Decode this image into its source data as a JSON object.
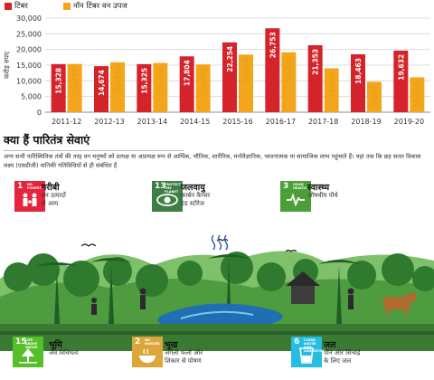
{
  "chart_data": {
    "type": "bar",
    "ylabel": "करोड़ रुपए",
    "ylim": [
      0,
      30000
    ],
    "yticks": [
      "0",
      "5,000",
      "10,000",
      "15,000",
      "20,000",
      "25,000",
      "30,000"
    ],
    "grid": true,
    "legend_position": "top-left",
    "categories": [
      "2011-12",
      "2012-13",
      "2013-14",
      "2014-15",
      "2015-16",
      "2016-17",
      "2017-18",
      "2018-19",
      "2019-20"
    ],
    "series": [
      {
        "name": "टिंबर",
        "color": "#d4232b",
        "values": [
          15328,
          14674,
          15325,
          17804,
          22254,
          26753,
          21353,
          18463,
          19632
        ],
        "labels": [
          "15,328",
          "14,674",
          "15,325",
          "17,804",
          "22,254",
          "26,753",
          "21,353",
          "18,463",
          "19,632"
        ]
      },
      {
        "name": "नॉन टिंबर वन उपज",
        "color": "#f3a51b",
        "values": [
          15378,
          15910,
          15696,
          15240,
          18373,
          19105,
          13988,
          9693,
          11118
        ],
        "labels": [
          "15,378",
          "15,910",
          "15,696",
          "15,240",
          "18,373",
          "19,105",
          "13,988",
          "9,693",
          "11,118"
        ]
      }
    ]
  },
  "section": {
    "heading": "क्या हैं पारितंत्र सेवाएं",
    "intro": "अन्य सभी पारिस्थितिक तंत्रों की तरह वन मनुष्यों को प्रत्यक्ष या अप्रत्यक्ष रूप से आर्थिक, भौतिक, शारीरिक, मनोवैज्ञानिक, भावनात्मक या सामाजिक लाभ पहुंचाते हैं। यहां तक कि छह सतत विकास लक्ष्य (एसडीजी) वानिकी गतिविधियों से ही संबंधित हैं"
  },
  "sdgs": [
    {
      "num": "1",
      "caption": "NO POVERTY",
      "title": "गरीबी",
      "desc": [
        "वन उत्पादों",
        "से आय"
      ],
      "color": "#e5243b",
      "icon": "family-icon"
    },
    {
      "num": "13",
      "caption": "PROTECT THE PLANET",
      "title": "जलवायु",
      "desc": [
        "कार्बन कैप्चर",
        "एंड स्टोरेज"
      ],
      "color": "#3f7e44",
      "icon": "eye-globe-icon"
    },
    {
      "num": "3",
      "caption": "GOOD HEALTH",
      "title": "स्वास्थ्य",
      "desc": [
        "औषधीय पौधे"
      ],
      "color": "#4c9f38",
      "icon": "heartbeat-icon"
    },
    {
      "num": "15",
      "caption": "LIFE ABOVE WATER",
      "title": "भूमि",
      "desc": [
        "जैव विविधता"
      ],
      "color": "#56c02b",
      "icon": "tree-icon"
    },
    {
      "num": "2",
      "caption": "NO HUNGER",
      "title": "भूख",
      "desc": [
        "जंगली फलों और",
        "शिकार से पोषण"
      ],
      "color": "#dda63a",
      "icon": "bowl-icon"
    },
    {
      "num": "6",
      "caption": "CLEAN WATER AND SANITATION",
      "title": "जल",
      "desc": [
        "पीने और सिंचाई",
        "के लिए जल"
      ],
      "color": "#26bde2",
      "icon": "water-glass-icon"
    }
  ]
}
